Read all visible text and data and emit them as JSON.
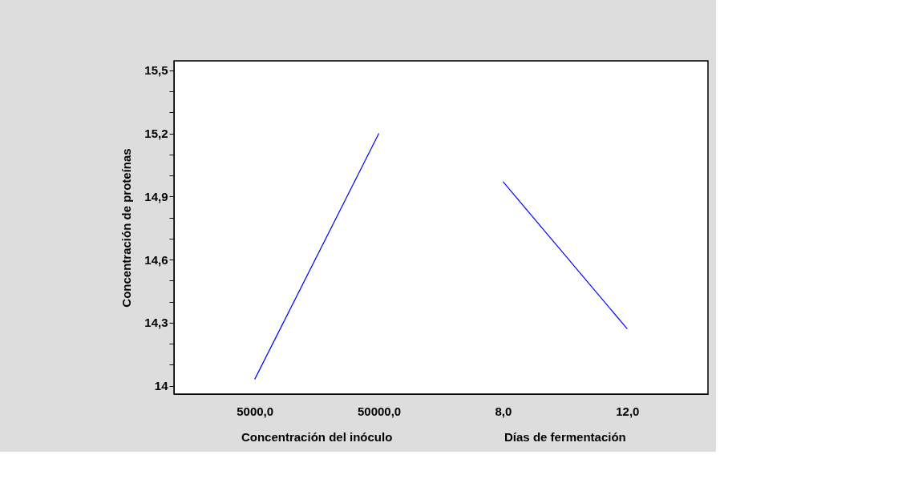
{
  "chart_data": {
    "type": "line",
    "categories": [
      "5000,0",
      "50000,0",
      "8,0",
      "12,0"
    ],
    "series": [
      {
        "color": "#0000ff",
        "values": [
          14.03,
          15.2,
          null,
          null
        ]
      },
      {
        "color": "#0000ff",
        "values": [
          null,
          null,
          14.97,
          14.27
        ]
      }
    ],
    "ylabel": "Concentración de proteínas",
    "annotations": [
      "Concentración del inóculo",
      "Días de fermentación"
    ],
    "ylim": [
      13.96,
      15.545
    ],
    "yticks": [
      {
        "value": 14,
        "label": "14"
      },
      {
        "value": 14.1,
        "label": null
      },
      {
        "value": 14.2,
        "label": null
      },
      {
        "value": 14.3,
        "label": "14,3"
      },
      {
        "value": 14.4,
        "label": null
      },
      {
        "value": 14.5,
        "label": null
      },
      {
        "value": 14.6,
        "label": "14,6"
      },
      {
        "value": 14.7,
        "label": null
      },
      {
        "value": 14.8,
        "label": null
      },
      {
        "value": 14.9,
        "label": "14,9"
      },
      {
        "value": 15.0,
        "label": null
      },
      {
        "value": 15.1,
        "label": null
      },
      {
        "value": 15.2,
        "label": "15,2"
      },
      {
        "value": 15.3,
        "label": null
      },
      {
        "value": 15.4,
        "label": null
      },
      {
        "value": 15.5,
        "label": "15,5"
      }
    ],
    "grid": false,
    "marker": "none",
    "line_style": "solid"
  }
}
